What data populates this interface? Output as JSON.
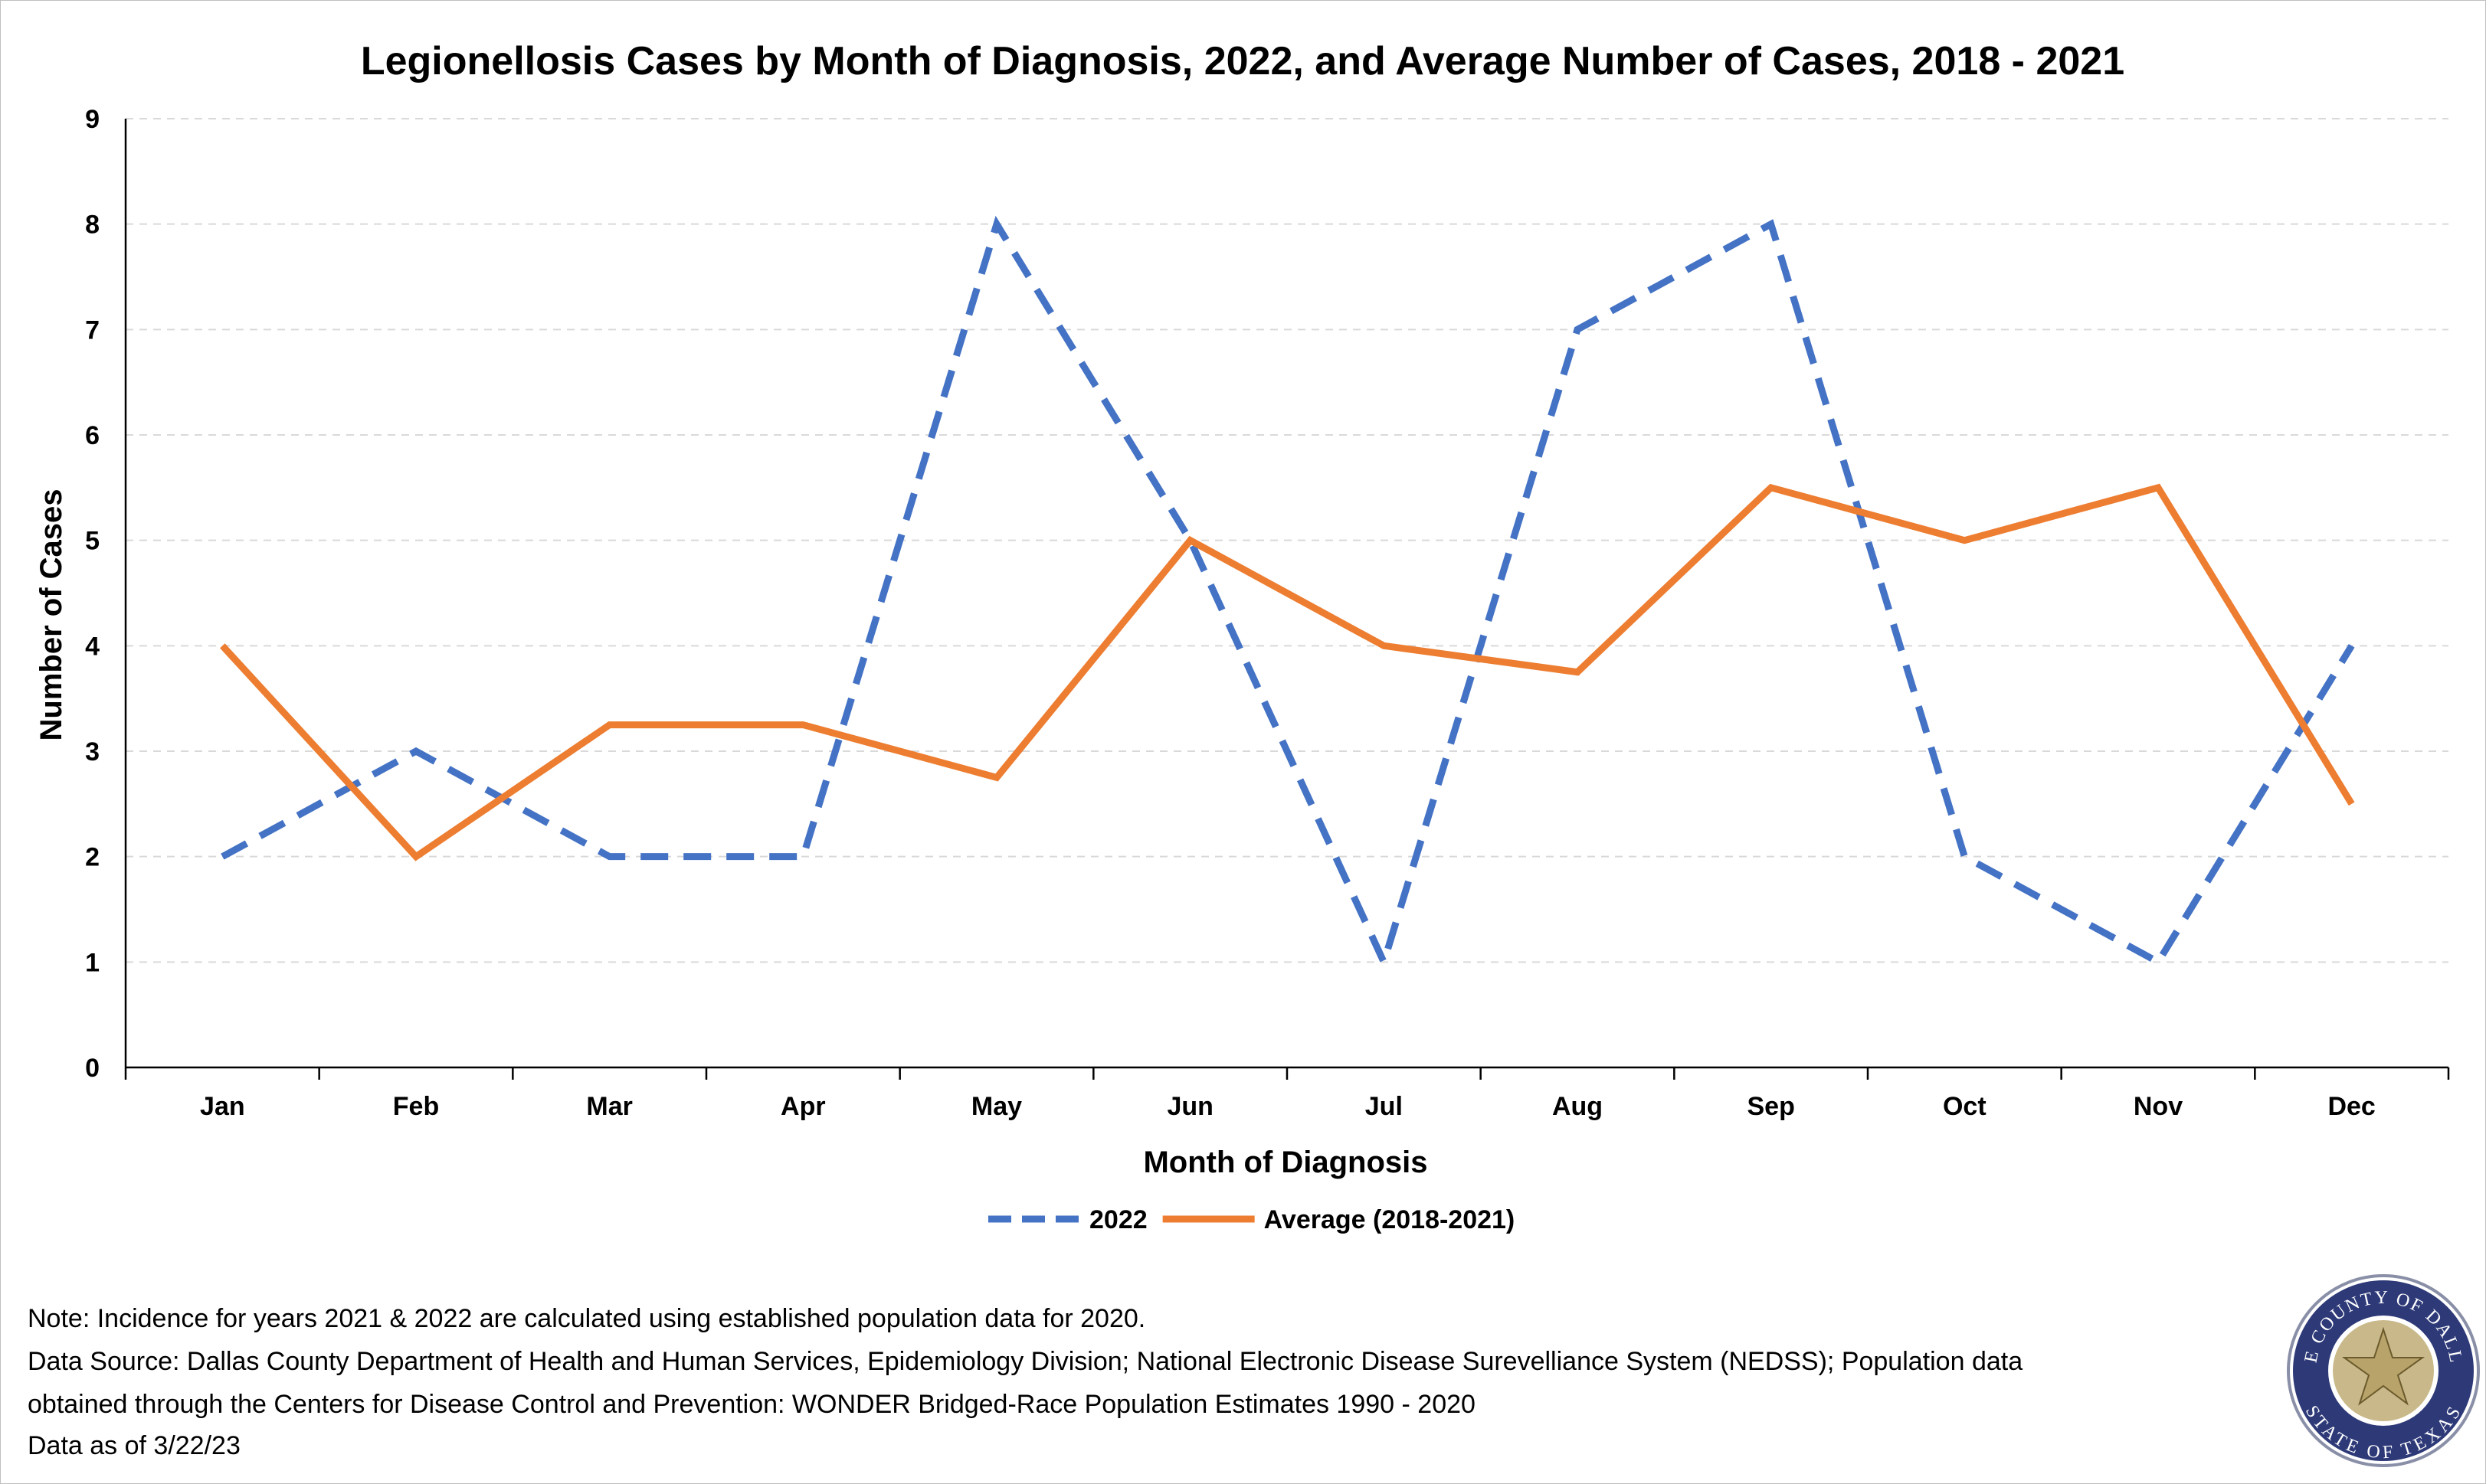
{
  "chart_data": {
    "type": "line",
    "title": "Legionellosis Cases by Month of Diagnosis, 2022, and Average Number of Cases, 2018 - 2021",
    "xlabel": "Month of Diagnosis",
    "ylabel": "Number of Cases",
    "ylim": [
      0,
      9
    ],
    "yticks": [
      "0",
      "1",
      "2",
      "3",
      "4",
      "5",
      "6",
      "7",
      "8",
      "9"
    ],
    "categories": [
      "Jan",
      "Feb",
      "Mar",
      "Apr",
      "May",
      "Jun",
      "Jul",
      "Aug",
      "Sep",
      "Oct",
      "Nov",
      "Dec"
    ],
    "grid": true,
    "legend_position": "bottom",
    "series": [
      {
        "name": "2022",
        "color": "#4472C4",
        "style": "dashed",
        "values": [
          2,
          3,
          2,
          2,
          8,
          5,
          1,
          7,
          8,
          2,
          1,
          4
        ]
      },
      {
        "name": "Average (2018-2021)",
        "color": "#ED7D31",
        "style": "solid",
        "values": [
          4,
          2,
          3.25,
          3.25,
          2.75,
          5,
          4,
          3.75,
          5.5,
          5,
          5.5,
          2.5
        ]
      }
    ]
  },
  "notes": {
    "line1": "Note: Incidence for years 2021 & 2022 are calculated using established population data for 2020.",
    "line2": "Data Source: Dallas County Department of Health and Human Services, Epidemiology Division; National Electronic Disease Surevelliance System (NEDSS); Population data",
    "line3": "obtained through the Centers for Disease Control and Prevention: WONDER Bridged-Race Population Estimates 1990 - 2020",
    "line4": "Data as of 3/22/23"
  },
  "seal": {
    "top_text": "THE COUNTY OF DALLAS",
    "bottom_text": "STATE OF TEXAS",
    "colors": {
      "ring": "#2E3A78",
      "inner": "#C9B98A",
      "star": "#B8A46A"
    }
  }
}
